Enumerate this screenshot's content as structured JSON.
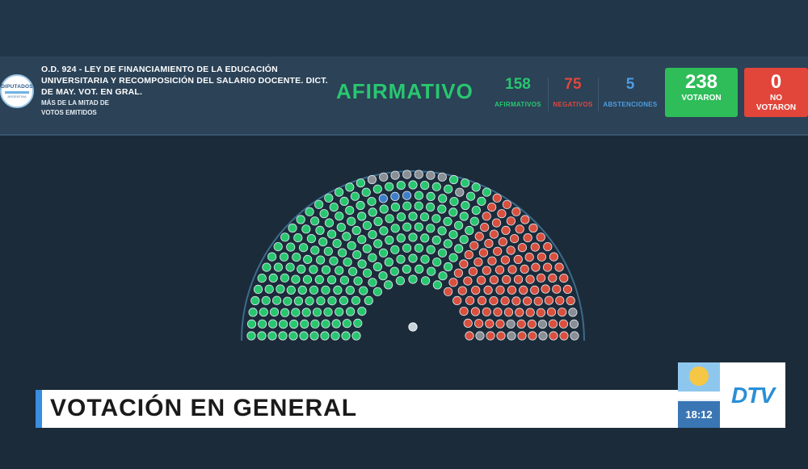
{
  "header": {
    "logo_text": "DIPUTADOS",
    "logo_subtext": "ARGENTINA",
    "motion_title": "O.D. 924 - LEY DE FINANCIAMIENTO DE LA EDUCACIÓN UNIVERSITARIA Y RECOMPOSICIÓN DEL SALARIO DOCENTE. DICT. DE MAY. VOT. EN GRAL.",
    "majority_rule_line1": "MÁS DE LA MITAD DE",
    "majority_rule_line2": "VOTOS EMITIDOS",
    "result": "AFIRMATIVO",
    "afirmativos": {
      "value": "158",
      "label": "AFIRMATIVOS",
      "color": "#28c76f"
    },
    "negativos": {
      "value": "75",
      "label": "NEGATIVOS",
      "color": "#e2463b"
    },
    "abstenciones": {
      "value": "5",
      "label": "ABSTENCIONES",
      "color": "#4d9de0"
    },
    "votaron": {
      "value": "238",
      "label": "VOTARON",
      "color": "#2ebd59"
    },
    "no_votaron": {
      "value": "0",
      "label_line1": "NO",
      "label_line2": "VOTARON",
      "color": "#e2463b"
    }
  },
  "hemicycle": {
    "afirmativo_color": "#28c76f",
    "negativo_color": "#d9503f",
    "abstencion_color": "#3f7fc9",
    "ausente_color": "#8a8f96"
  },
  "banner": {
    "text": "VOTACIÓN EN GENERAL"
  },
  "overlay": {
    "time": "18:12",
    "channel_logo": "DTV"
  }
}
